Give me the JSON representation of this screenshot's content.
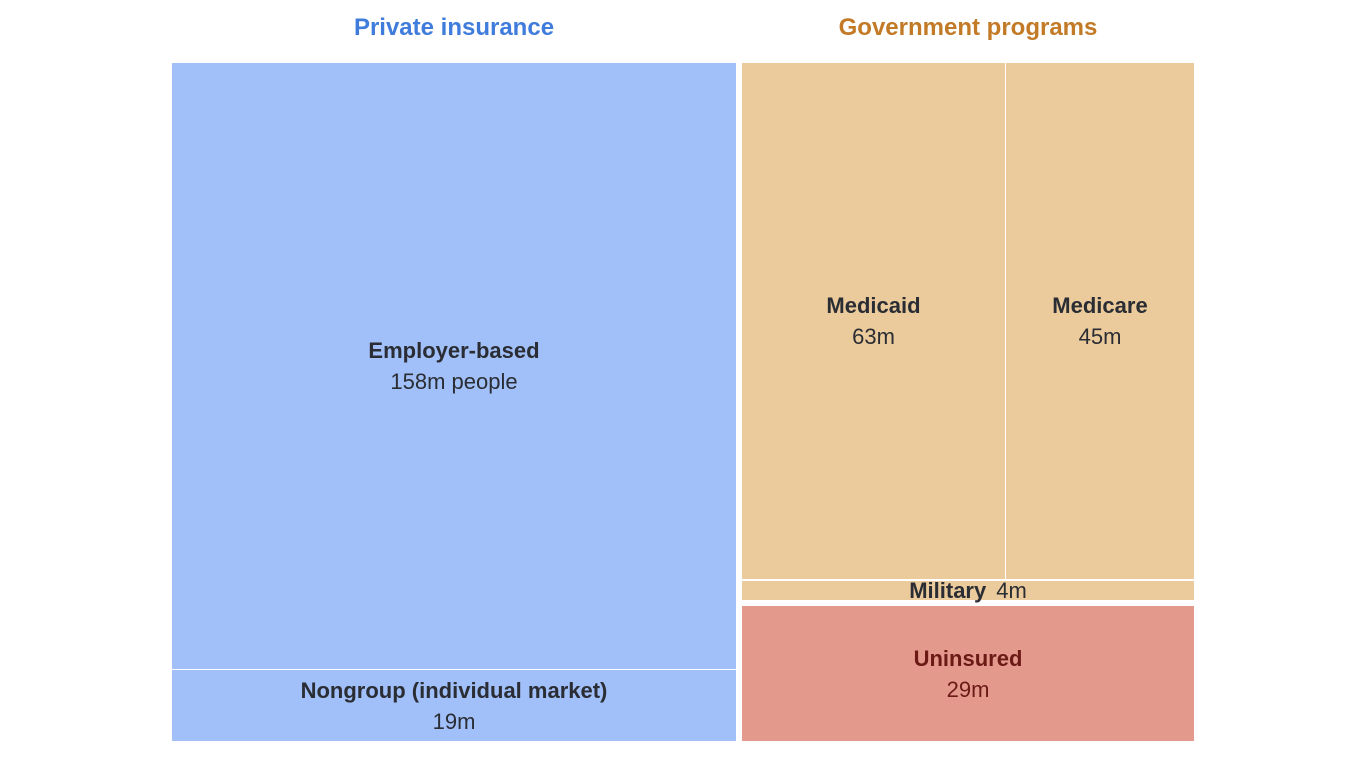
{
  "chart_data": {
    "type": "treemap",
    "unit": "m people",
    "groups": [
      {
        "name": "Private insurance",
        "color": "#3f7cdc",
        "tile_color": "#a1bff8",
        "children": [
          {
            "name": "Employer-based",
            "value": 158,
            "label": "158m people"
          },
          {
            "name": "Nongroup (individual market)",
            "value": 19,
            "label": "19m"
          }
        ]
      },
      {
        "name": "Government programs",
        "color": "#c27a26",
        "tile_color": "#ebcb9c",
        "children": [
          {
            "name": "Medicaid",
            "value": 63,
            "label": "63m"
          },
          {
            "name": "Medicare",
            "value": 45,
            "label": "45m"
          },
          {
            "name": "Military",
            "value": 4,
            "label": "4m"
          }
        ]
      },
      {
        "name": "",
        "tile_color": "#e4998d",
        "children": [
          {
            "name": "Uninsured",
            "value": 29,
            "label": "29m"
          }
        ]
      }
    ]
  }
}
